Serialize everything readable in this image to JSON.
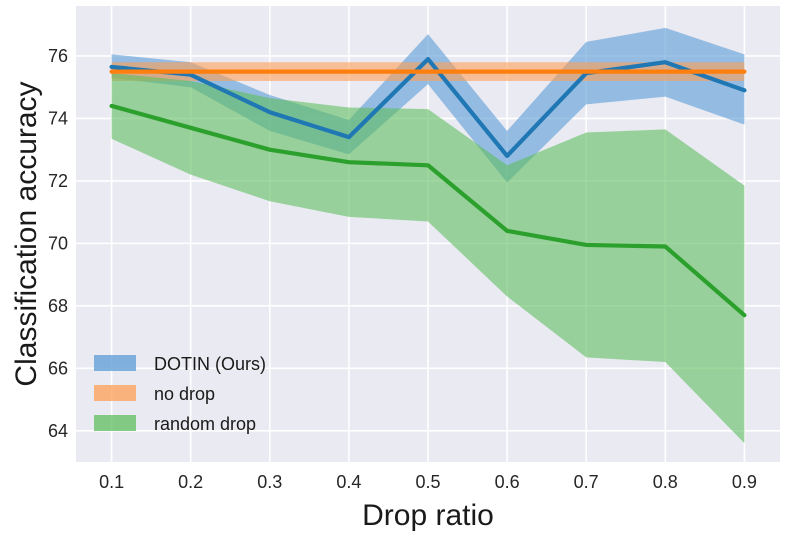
{
  "chart_data": {
    "type": "line",
    "xlabel": "Drop ratio",
    "ylabel": "Classification accuracy",
    "x": [
      0.1,
      0.2,
      0.3,
      0.4,
      0.5,
      0.6,
      0.7,
      0.8,
      0.9
    ],
    "x_tick_labels": [
      "0.1",
      "0.2",
      "0.3",
      "0.4",
      "0.5",
      "0.6",
      "0.7",
      "0.8",
      "0.9"
    ],
    "xlim": [
      0.055,
      0.945
    ],
    "ylim": [
      63.0,
      77.6
    ],
    "y_ticks": [
      64,
      66,
      68,
      70,
      72,
      74,
      76
    ],
    "y_tick_labels": [
      "64",
      "66",
      "68",
      "70",
      "72",
      "74",
      "76"
    ],
    "grid": true,
    "legend_position": "lower-left",
    "series": [
      {
        "name": "DOTIN (Ours)",
        "color": "#1f77b4",
        "band_color": "#5a9bd5",
        "mean": [
          75.65,
          75.4,
          74.2,
          73.4,
          75.9,
          72.8,
          75.45,
          75.8,
          74.9
        ],
        "lower": [
          75.3,
          75.0,
          73.6,
          72.85,
          75.1,
          71.95,
          74.45,
          74.7,
          73.8
        ],
        "upper": [
          76.05,
          75.8,
          74.75,
          73.95,
          76.7,
          73.6,
          76.45,
          76.9,
          76.05
        ]
      },
      {
        "name": "no drop",
        "color": "#ff7f0e",
        "band_color": "#ff9f55",
        "mean": [
          75.5,
          75.5,
          75.5,
          75.5,
          75.5,
          75.5,
          75.5,
          75.5,
          75.5
        ],
        "lower": [
          75.2,
          75.2,
          75.2,
          75.2,
          75.2,
          75.2,
          75.2,
          75.2,
          75.2
        ],
        "upper": [
          75.8,
          75.8,
          75.8,
          75.8,
          75.8,
          75.8,
          75.8,
          75.8,
          75.8
        ]
      },
      {
        "name": "random drop",
        "color": "#2ca02c",
        "band_color": "#5fbe5f",
        "mean": [
          74.4,
          73.7,
          73.0,
          72.6,
          72.5,
          70.4,
          69.95,
          69.9,
          67.7
        ],
        "lower": [
          73.35,
          72.2,
          71.35,
          70.85,
          70.7,
          68.3,
          66.35,
          66.2,
          63.6
        ],
        "upper": [
          75.45,
          75.2,
          74.65,
          74.35,
          74.3,
          72.5,
          73.55,
          73.65,
          71.85
        ]
      }
    ]
  }
}
